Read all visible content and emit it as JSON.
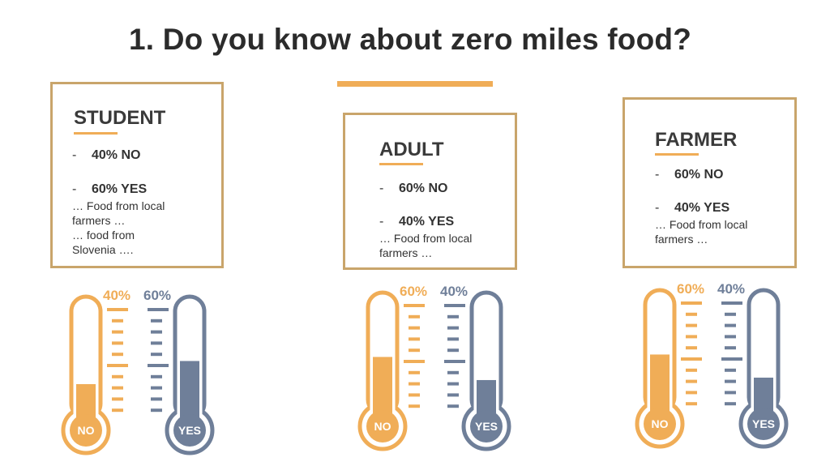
{
  "title": "1. Do you know about zero miles food?",
  "colors": {
    "accent": "#f0ad57",
    "slate": "#6f7f99",
    "border": "#c9a56b"
  },
  "groups": [
    {
      "name": "STUDENT",
      "stats": [
        {
          "dash": "-",
          "text": "40% NO"
        },
        {
          "dash": "-",
          "text": "60% YES"
        }
      ],
      "note": "… Food from local\nfarmers …\n… food from\nSlovenia ….",
      "no": {
        "label": "NO",
        "pct_label": "40%",
        "value": 40
      },
      "yes": {
        "label": "YES",
        "pct_label": "60%",
        "value": 60
      }
    },
    {
      "name": "ADULT",
      "stats": [
        {
          "dash": "-",
          "text": "60% NO"
        },
        {
          "dash": "-",
          "text": "40% YES"
        }
      ],
      "note": "… Food from local\nfarmers …",
      "no": {
        "label": "NO",
        "pct_label": "60%",
        "value": 60
      },
      "yes": {
        "label": "YES",
        "pct_label": "40%",
        "value": 40
      }
    },
    {
      "name": "FARMER",
      "stats": [
        {
          "dash": "-",
          "text": "60% NO"
        },
        {
          "dash": "-",
          "text": "40% YES"
        }
      ],
      "note": "… Food from local\nfarmers …",
      "no": {
        "label": "NO",
        "pct_label": "60%",
        "value": 60
      },
      "yes": {
        "label": "YES",
        "pct_label": "40%",
        "value": 40
      }
    }
  ]
}
